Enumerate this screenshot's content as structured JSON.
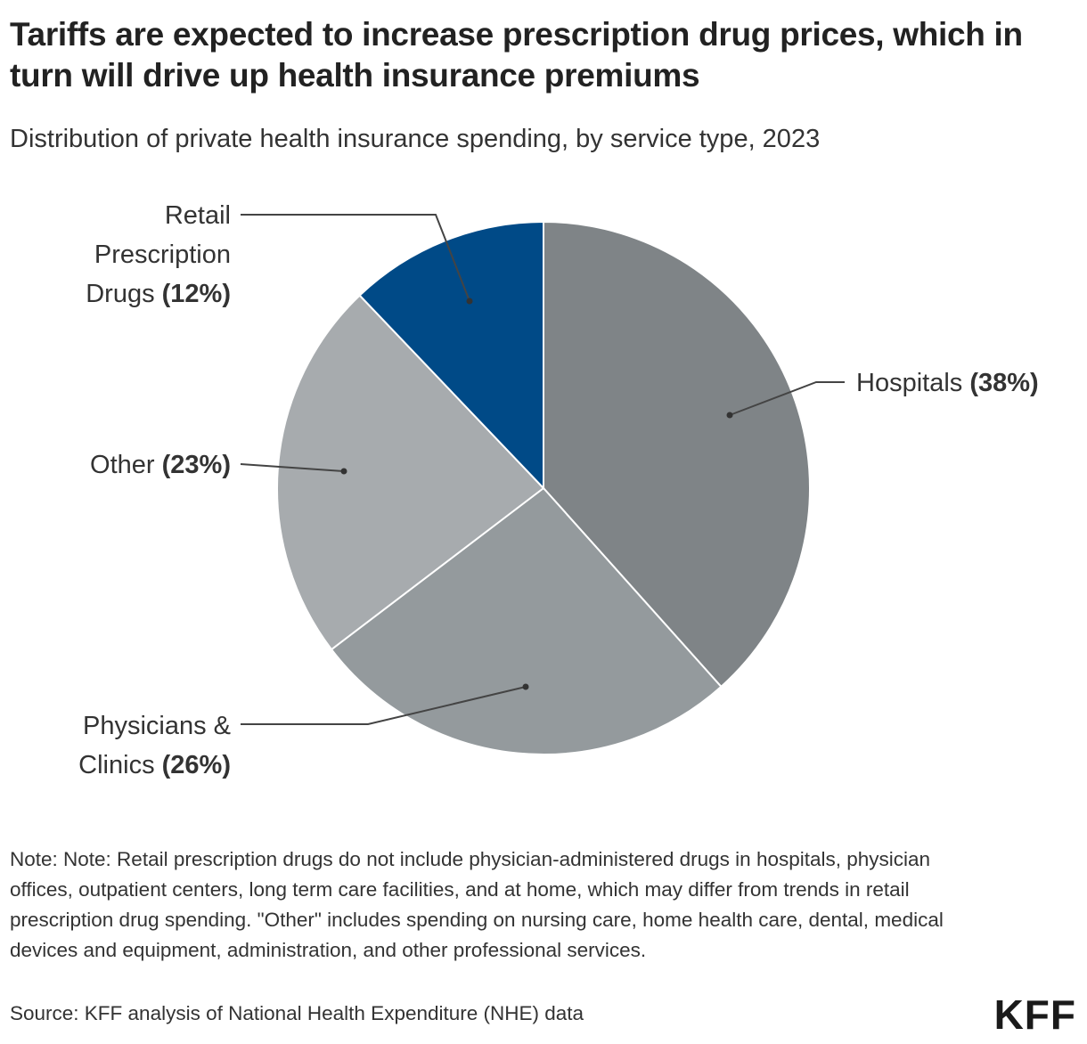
{
  "title": "Tariffs are expected to increase prescription drug prices, which in turn will drive up health insurance premiums",
  "subtitle": "Distribution of private health insurance spending, by service type, 2023",
  "chart_data": {
    "type": "pie",
    "title": "Tariffs are expected to increase prescription drug prices, which in turn will drive up health insurance premiums",
    "subtitle": "Distribution of private health insurance spending, by service type, 2023",
    "slices": [
      {
        "label": "Hospitals",
        "pct_label": "(38%)",
        "value": 38,
        "color": "#7f8487"
      },
      {
        "label": "Physicians & Clinics",
        "pct_label": "(26%)",
        "value": 26,
        "color": "#949a9d"
      },
      {
        "label": "Other",
        "pct_label": "(23%)",
        "value": 23,
        "color": "#a7abae"
      },
      {
        "label": "Retail Prescription Drugs",
        "pct_label": "(12%)",
        "value": 12,
        "color": "#004a87"
      }
    ],
    "start": "top",
    "direction": "clockwise",
    "legend": "none (leader-line labels)"
  },
  "labels": {
    "hospitals": "Hospitals",
    "physicians_1": "Physicians &",
    "physicians_2": "Clinics",
    "other": "Other",
    "retail_1": "Retail",
    "retail_2": "Prescription",
    "retail_3": "Drugs"
  },
  "note": "Note: Note: Retail prescription drugs do not include physician-administered drugs in hospitals, physician offices, outpatient centers, long term care facilities, and at home, which may differ from trends in retail prescription drug spending. \"Other\" includes spending on nursing care, home health care, dental, medical devices and equipment, administration, and other professional services.",
  "source": "Source: KFF analysis of National Health Expenditure (NHE) data",
  "logo": "KFF"
}
